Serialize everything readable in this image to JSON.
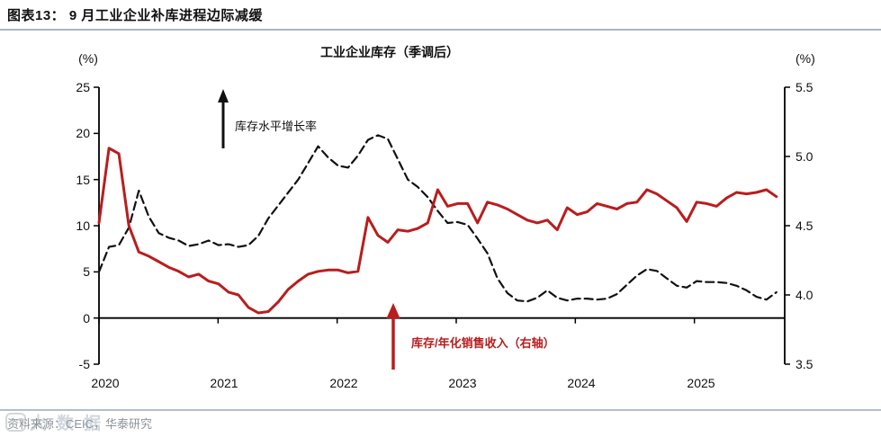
{
  "header": {
    "title": "图表13：  9 月工业企业补库进程边际减缓"
  },
  "chart_data": {
    "type": "line",
    "title": "工业企业库存（季调后）",
    "x_frequency": "monthly",
    "x_range": [
      "2020-01",
      "2025-09"
    ],
    "x_axis": {
      "year_labels": [
        "2020",
        "2021",
        "2022",
        "2023",
        "2024",
        "2025"
      ]
    },
    "left_axis": {
      "unit": "(%)",
      "tick_labels": [
        "25",
        "20",
        "15",
        "10",
        "5",
        "0",
        "-5"
      ],
      "range": [
        -5,
        25
      ],
      "grid": false
    },
    "right_axis": {
      "unit": "(%)",
      "tick_labels": [
        "5.5",
        "5.0",
        "4.5",
        "4.0",
        "3.5"
      ],
      "range": [
        3.5,
        5.5
      ],
      "grid": false
    },
    "series": [
      {
        "name": "库存水平增长率",
        "axis": "left",
        "style": "dashed",
        "color": "#111111",
        "values": [
          5.0,
          7.7,
          7.9,
          9.8,
          13.8,
          11.0,
          9.2,
          8.7,
          8.4,
          7.8,
          8.0,
          8.4,
          7.9,
          8.0,
          7.7,
          7.9,
          8.9,
          10.8,
          12.2,
          13.6,
          15.0,
          16.8,
          18.6,
          17.4,
          16.5,
          16.3,
          17.6,
          19.3,
          19.8,
          19.4,
          17.2,
          15.0,
          14.2,
          13.1,
          11.6,
          10.3,
          10.4,
          10.1,
          8.6,
          7.0,
          4.3,
          2.7,
          1.9,
          1.8,
          2.2,
          3.0,
          2.2,
          1.9,
          2.1,
          2.1,
          2.0,
          2.1,
          2.6,
          3.6,
          4.6,
          5.3,
          5.1,
          4.3,
          3.5,
          3.3,
          4.0,
          3.9,
          3.9,
          3.8,
          3.5,
          3.0,
          2.3,
          2.0,
          2.8
        ],
        "annotation": "库存水平增长率"
      },
      {
        "name": "库存/年化销售收入（右轴）",
        "axis": "right",
        "style": "solid",
        "color": "#b91d1d",
        "values": [
          4.52,
          5.06,
          5.02,
          4.5,
          4.31,
          4.28,
          4.24,
          4.2,
          4.17,
          4.13,
          4.15,
          4.1,
          4.08,
          4.02,
          4.0,
          3.91,
          3.87,
          3.88,
          3.95,
          4.04,
          4.1,
          4.15,
          4.17,
          4.18,
          4.18,
          4.16,
          4.17,
          4.56,
          4.43,
          4.38,
          4.47,
          4.46,
          4.48,
          4.52,
          4.76,
          4.64,
          4.66,
          4.66,
          4.52,
          4.67,
          4.65,
          4.62,
          4.58,
          4.54,
          4.52,
          4.54,
          4.47,
          4.63,
          4.58,
          4.6,
          4.66,
          4.64,
          4.62,
          4.66,
          4.67,
          4.76,
          4.73,
          4.68,
          4.63,
          4.53,
          4.67,
          4.66,
          4.64,
          4.7,
          4.74,
          4.73,
          4.74,
          4.76,
          4.71
        ],
        "annotation": "库存/年化销售收入（右轴）"
      }
    ],
    "legend_position": "in-plot annotations with vertical arrows"
  },
  "footer": {
    "source": "资料来源：CEIC，华泰研究",
    "watermark": "大数据"
  }
}
